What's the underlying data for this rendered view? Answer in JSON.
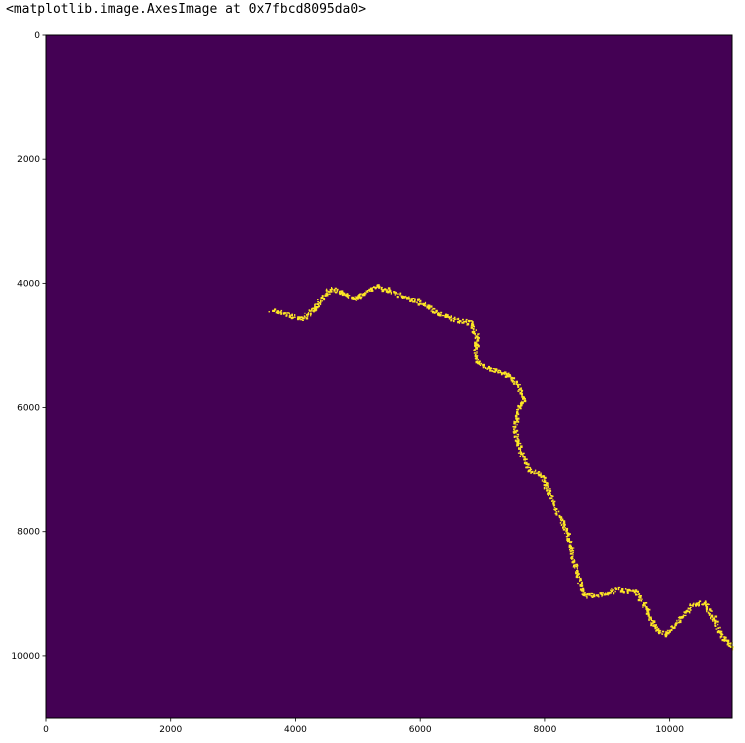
{
  "output_repr": "<matplotlib.image.AxesImage at 0x7fbcd8095da0>",
  "chart_data": {
    "type": "heatmap",
    "title": "",
    "xlabel": "",
    "ylabel": "",
    "xlim": [
      0,
      11000
    ],
    "ylim": [
      11000,
      0
    ],
    "y_inverted": true,
    "grid": false,
    "colormap": "viridis",
    "colors": {
      "background": "#440154",
      "feature": "#fde725"
    },
    "x_ticks": [
      0,
      2000,
      4000,
      6000,
      8000,
      10000
    ],
    "x_tick_labels": [
      "0",
      "2000",
      "4000",
      "6000",
      "8000",
      "10000"
    ],
    "y_ticks": [
      0,
      2000,
      4000,
      6000,
      8000,
      10000
    ],
    "y_tick_labels": [
      "0",
      "2000",
      "4000",
      "6000",
      "8000",
      "10000"
    ],
    "feature_path": [
      [
        3600,
        4420
      ],
      [
        3900,
        4500
      ],
      [
        4100,
        4560
      ],
      [
        4250,
        4430
      ],
      [
        4400,
        4250
      ],
      [
        4550,
        4080
      ],
      [
        4750,
        4150
      ],
      [
        4950,
        4240
      ],
      [
        5150,
        4110
      ],
      [
        5300,
        4040
      ],
      [
        5500,
        4110
      ],
      [
        5700,
        4200
      ],
      [
        5900,
        4260
      ],
      [
        6100,
        4350
      ],
      [
        6300,
        4480
      ],
      [
        6550,
        4570
      ],
      [
        6800,
        4620
      ],
      [
        6900,
        4820
      ],
      [
        6880,
        5050
      ],
      [
        6920,
        5280
      ],
      [
        7100,
        5360
      ],
      [
        7350,
        5430
      ],
      [
        7550,
        5620
      ],
      [
        7650,
        5830
      ],
      [
        7550,
        6050
      ],
      [
        7500,
        6350
      ],
      [
        7600,
        6720
      ],
      [
        7750,
        6990
      ],
      [
        7950,
        7080
      ],
      [
        8050,
        7350
      ],
      [
        8200,
        7700
      ],
      [
        8350,
        8050
      ],
      [
        8450,
        8450
      ],
      [
        8550,
        8800
      ],
      [
        8620,
        9020
      ],
      [
        8900,
        9000
      ],
      [
        9150,
        8920
      ],
      [
        9450,
        8950
      ],
      [
        9600,
        9200
      ],
      [
        9750,
        9550
      ],
      [
        9950,
        9640
      ],
      [
        10150,
        9400
      ],
      [
        10350,
        9170
      ],
      [
        10550,
        9120
      ],
      [
        10700,
        9400
      ],
      [
        10850,
        9700
      ],
      [
        11000,
        9850
      ]
    ]
  }
}
